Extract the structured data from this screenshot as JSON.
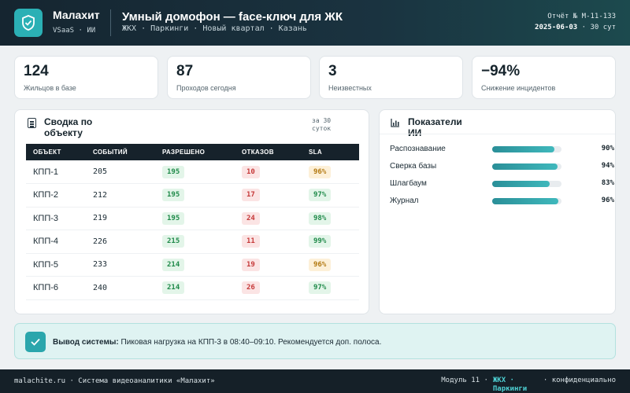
{
  "header": {
    "brand": "Малахит",
    "brand_sub": "VSaaS · ИИ",
    "title": "Умный домофон — face-ключ для ЖК",
    "tags": "ЖКХ · Паркинги · Новый квартал · Казань",
    "report_no": "Отчёт № M-11-133",
    "report_date": "2025-06-03",
    "report_period": " · 30 сут"
  },
  "kpis": [
    {
      "value": "124",
      "label": "Жильцов в базе"
    },
    {
      "value": "87",
      "label": "Проходов сегодня"
    },
    {
      "value": "3",
      "label": "Неизвестных"
    },
    {
      "value": "−94%",
      "label": "Снижение инцидентов"
    }
  ],
  "summary": {
    "title": "Сводка по объекту",
    "period": "за 30 суток",
    "columns": [
      "ОБЪЕКТ",
      "СОБЫТИЙ",
      "РАЗРЕШЕНО",
      "ОТКАЗОВ",
      "SLA"
    ],
    "rows": [
      {
        "object": "КПП-1",
        "events": "205",
        "allowed": "195",
        "denied": "10",
        "sla": "96%",
        "sla_level": "y"
      },
      {
        "object": "КПП-2",
        "events": "212",
        "allowed": "195",
        "denied": "17",
        "sla": "97%",
        "sla_level": "g"
      },
      {
        "object": "КПП-3",
        "events": "219",
        "allowed": "195",
        "denied": "24",
        "sla": "98%",
        "sla_level": "g"
      },
      {
        "object": "КПП-4",
        "events": "226",
        "allowed": "215",
        "denied": "11",
        "sla": "99%",
        "sla_level": "g"
      },
      {
        "object": "КПП-5",
        "events": "233",
        "allowed": "214",
        "denied": "19",
        "sla": "96%",
        "sla_level": "y"
      },
      {
        "object": "КПП-6",
        "events": "240",
        "allowed": "214",
        "denied": "26",
        "sla": "97%",
        "sla_level": "g"
      }
    ]
  },
  "ai": {
    "title": "Показатели ИИ",
    "metrics": [
      {
        "label": "Распознавание",
        "value": 90,
        "text": "90%"
      },
      {
        "label": "Сверка базы",
        "value": 94,
        "text": "94%"
      },
      {
        "label": "Шлагбаум",
        "value": 83,
        "text": "83%"
      },
      {
        "label": "Журнал",
        "value": 96,
        "text": "96%"
      }
    ]
  },
  "alert": {
    "prefix": "Вывод системы:",
    "text": " Пиковая нагрузка на КПП-3 в 08:40–09:10. Рекомендуется доп. полоса."
  },
  "footer": {
    "left": "malachite.ru · Система видеоаналитики «Малахит»",
    "module": "Модуль 11 ·",
    "module_tag": "ЖКХ · Паркинги",
    "confidential": "· конфиденциально"
  },
  "colors": {
    "accent": "#2bb0b5",
    "dark": "#152028"
  }
}
